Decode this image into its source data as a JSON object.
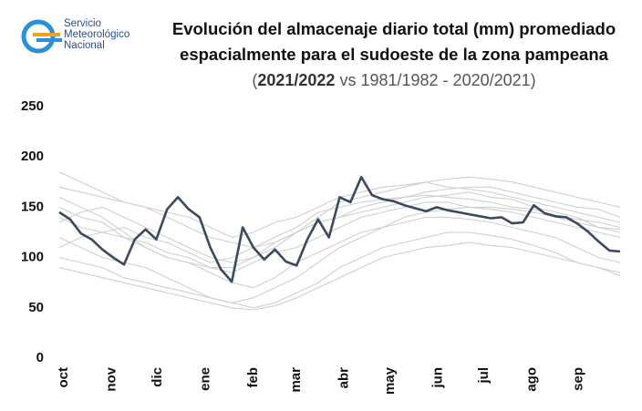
{
  "logo": [
    "Servicio",
    "Meteorológico",
    "Nacional"
  ],
  "chart_data": {
    "type": "line",
    "title": [
      "Evolución del almacenaje diario total (mm) promediado",
      "espacialmente para el sudoeste de la zona pampeana"
    ],
    "subtitle": [
      "(",
      "2021/2022",
      "vs 1981/1982 - 2020/2021)"
    ],
    "xlim": [
      0,
      364
    ],
    "ylim": [
      0,
      250
    ],
    "yticks": [
      0,
      50,
      100,
      150,
      200,
      250
    ],
    "grid": false,
    "xticks": [
      {
        "value": 0,
        "label": "oct"
      },
      {
        "value": 31,
        "label": "nov"
      },
      {
        "value": 61,
        "label": "dic"
      },
      {
        "value": 92,
        "label": "ene"
      },
      {
        "value": 123,
        "label": "feb"
      },
      {
        "value": 151,
        "label": "mar"
      },
      {
        "value": 182,
        "label": "abr"
      },
      {
        "value": 212,
        "label": "may"
      },
      {
        "value": 243,
        "label": "jun"
      },
      {
        "value": 273,
        "label": "jul"
      },
      {
        "value": 304,
        "label": "ago"
      },
      {
        "value": 334,
        "label": "sep"
      }
    ],
    "x": [
      0,
      14,
      28,
      42,
      56,
      70,
      84,
      98,
      112,
      126,
      140,
      154,
      168,
      182,
      196,
      210,
      224,
      238,
      252,
      266,
      280,
      294,
      308,
      322,
      336,
      350,
      364
    ],
    "series": [
      {
        "color": "#cfcfcf",
        "values": [
          150,
          140,
          135,
          120,
          115,
          105,
          100,
          90,
          85,
          95,
          105,
          110,
          120,
          130,
          140,
          145,
          150,
          155,
          155,
          150,
          150,
          148,
          145,
          140,
          135,
          130,
          128
        ]
      },
      {
        "color": "#cfcfcf",
        "values": [
          120,
          110,
          100,
          95,
          90,
          80,
          70,
          60,
          55,
          60,
          70,
          80,
          95,
          110,
          120,
          130,
          135,
          140,
          140,
          138,
          135,
          130,
          125,
          120,
          110,
          100,
          95
        ]
      },
      {
        "color": "#cfcfcf",
        "values": [
          170,
          165,
          160,
          155,
          150,
          145,
          140,
          130,
          120,
          125,
          135,
          140,
          150,
          160,
          165,
          170,
          172,
          175,
          170,
          168,
          165,
          160,
          155,
          150,
          145,
          140,
          135
        ]
      },
      {
        "color": "#cfcfcf",
        "values": [
          100,
          95,
          90,
          80,
          75,
          70,
          65,
          60,
          55,
          50,
          55,
          65,
          75,
          90,
          100,
          110,
          115,
          120,
          125,
          125,
          122,
          118,
          112,
          105,
          95,
          90,
          85
        ]
      },
      {
        "color": "#cfcfcf",
        "values": [
          135,
          145,
          150,
          140,
          130,
          120,
          110,
          100,
          95,
          100,
          115,
          125,
          135,
          140,
          150,
          155,
          160,
          165,
          168,
          170,
          170,
          165,
          160,
          155,
          150,
          148,
          140
        ]
      },
      {
        "color": "#cfcfcf",
        "values": [
          160,
          150,
          140,
          125,
          110,
          100,
          95,
          85,
          75,
          70,
          80,
          95,
          105,
          115,
          125,
          130,
          140,
          145,
          148,
          150,
          148,
          145,
          140,
          135,
          130,
          125,
          120
        ]
      },
      {
        "color": "#cfcfcf",
        "values": [
          110,
          120,
          125,
          120,
          110,
          100,
          95,
          90,
          90,
          100,
          110,
          125,
          135,
          140,
          145,
          150,
          155,
          160,
          162,
          165,
          160,
          158,
          150,
          145,
          140,
          130,
          125
        ]
      },
      {
        "color": "#cfcfcf",
        "values": [
          185,
          175,
          165,
          155,
          150,
          140,
          130,
          120,
          115,
          110,
          115,
          125,
          140,
          155,
          160,
          165,
          170,
          175,
          178,
          180,
          178,
          175,
          170,
          165,
          160,
          155,
          150
        ]
      },
      {
        "color": "#cfcfcf",
        "values": [
          90,
          85,
          80,
          75,
          70,
          65,
          60,
          55,
          50,
          48,
          52,
          60,
          70,
          80,
          90,
          100,
          105,
          110,
          112,
          115,
          112,
          110,
          105,
          100,
          95,
          90,
          82
        ]
      },
      {
        "color": "#cfcfcf",
        "values": [
          140,
          130,
          125,
          130,
          120,
          115,
          105,
          95,
          100,
          110,
          120,
          130,
          145,
          150,
          155,
          158,
          160,
          162,
          160,
          158,
          155,
          150,
          148,
          142,
          138,
          135,
          130
        ]
      },
      {
        "name": "2021/2022",
        "color": "#3b4a5e",
        "x": [
          0,
          7,
          14,
          21,
          28,
          35,
          42,
          49,
          56,
          63,
          70,
          77,
          84,
          91,
          98,
          105,
          112,
          119,
          126,
          133,
          140,
          147,
          154,
          161,
          168,
          175,
          182,
          189,
          196,
          203,
          210,
          217,
          224,
          231,
          238,
          245,
          252,
          259,
          266,
          273,
          280,
          287,
          294,
          301,
          308,
          315,
          322,
          329,
          336,
          343,
          350,
          357,
          364
        ],
        "values": [
          145,
          138,
          124,
          118,
          108,
          100,
          93,
          118,
          128,
          118,
          148,
          160,
          148,
          140,
          110,
          88,
          76,
          130,
          110,
          98,
          108,
          96,
          92,
          118,
          138,
          120,
          160,
          155,
          180,
          162,
          158,
          156,
          152,
          149,
          146,
          150,
          147,
          145,
          143,
          141,
          139,
          140,
          134,
          135,
          152,
          144,
          141,
          140,
          134,
          126,
          116,
          107,
          106
        ]
      }
    ]
  }
}
